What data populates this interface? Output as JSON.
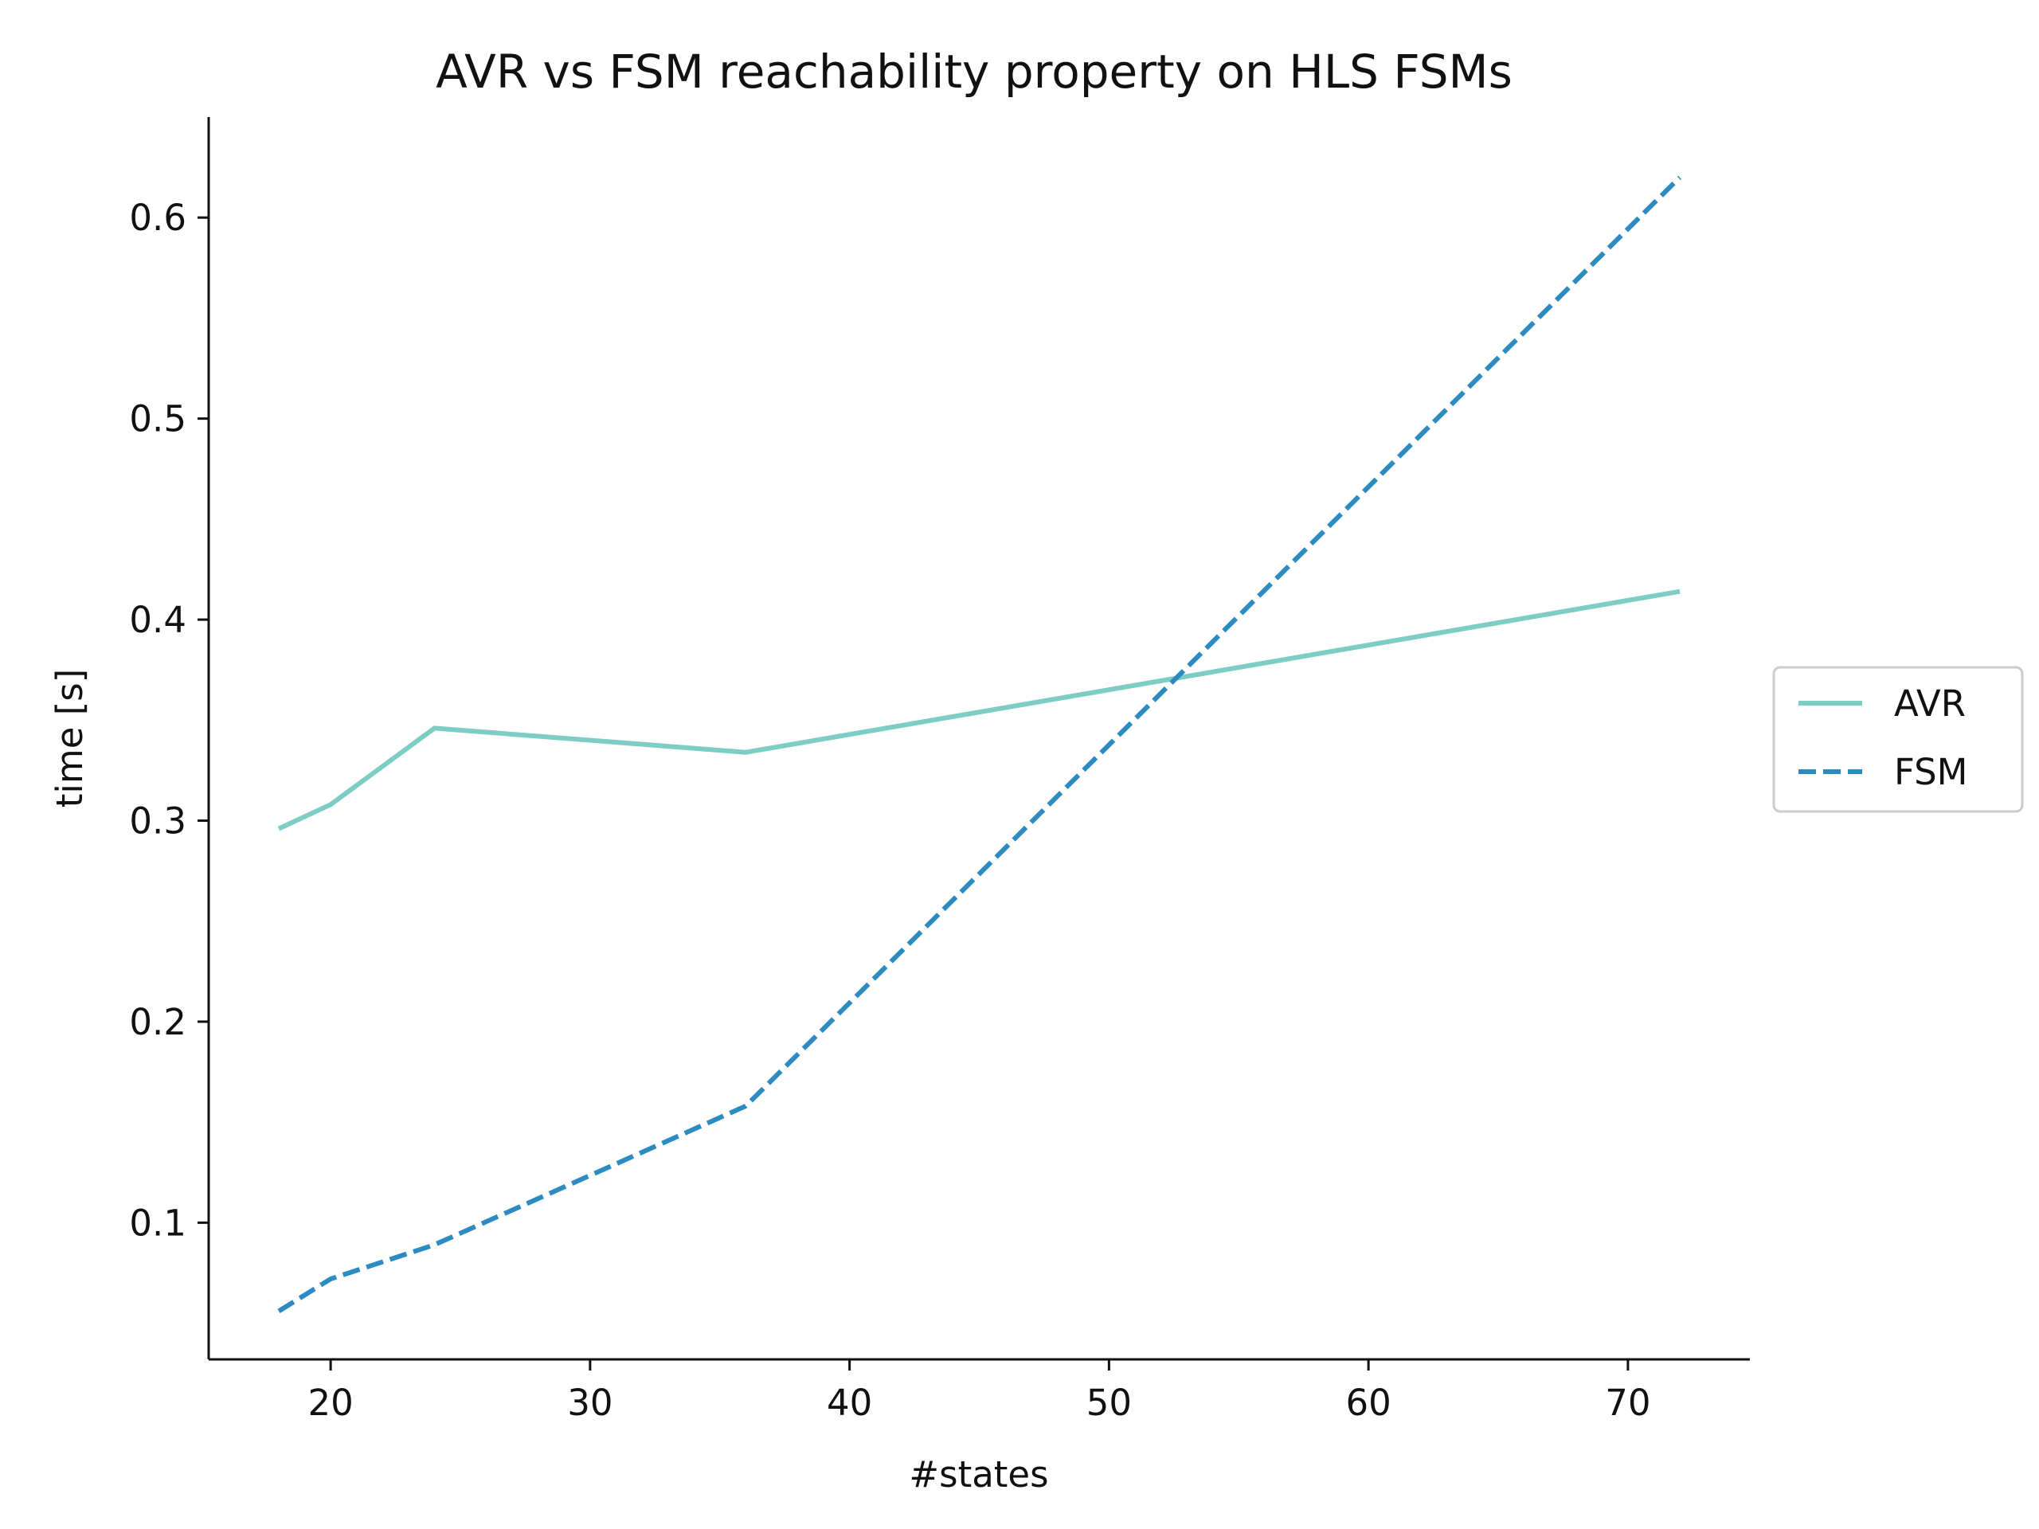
{
  "chart_data": {
    "type": "line",
    "title": "AVR vs FSM reachability property on HLS FSMs",
    "xlabel": "#states",
    "ylabel": "time [s]",
    "xlim": [
      15.3,
      74.7
    ],
    "ylim": [
      0.032,
      0.65
    ],
    "xticks": [
      20,
      30,
      40,
      50,
      60,
      70
    ],
    "xtick_labels": [
      "20",
      "30",
      "40",
      "50",
      "60",
      "70"
    ],
    "yticks": [
      0.1,
      0.2,
      0.3,
      0.4,
      0.5,
      0.6
    ],
    "ytick_labels": [
      "0.1",
      "0.2",
      "0.3",
      "0.4",
      "0.5",
      "0.6"
    ],
    "grid": false,
    "legend_position": "right",
    "series": [
      {
        "name": "AVR",
        "color": "#7ecdc4",
        "style": "solid",
        "x": [
          18,
          20,
          24,
          36,
          72
        ],
        "y": [
          0.296,
          0.308,
          0.346,
          0.334,
          0.414
        ]
      },
      {
        "name": "FSM",
        "color": "#2c8bc0",
        "style": "dashed",
        "x": [
          18,
          20,
          24,
          36,
          72
        ],
        "y": [
          0.056,
          0.072,
          0.089,
          0.158,
          0.62
        ]
      }
    ]
  }
}
